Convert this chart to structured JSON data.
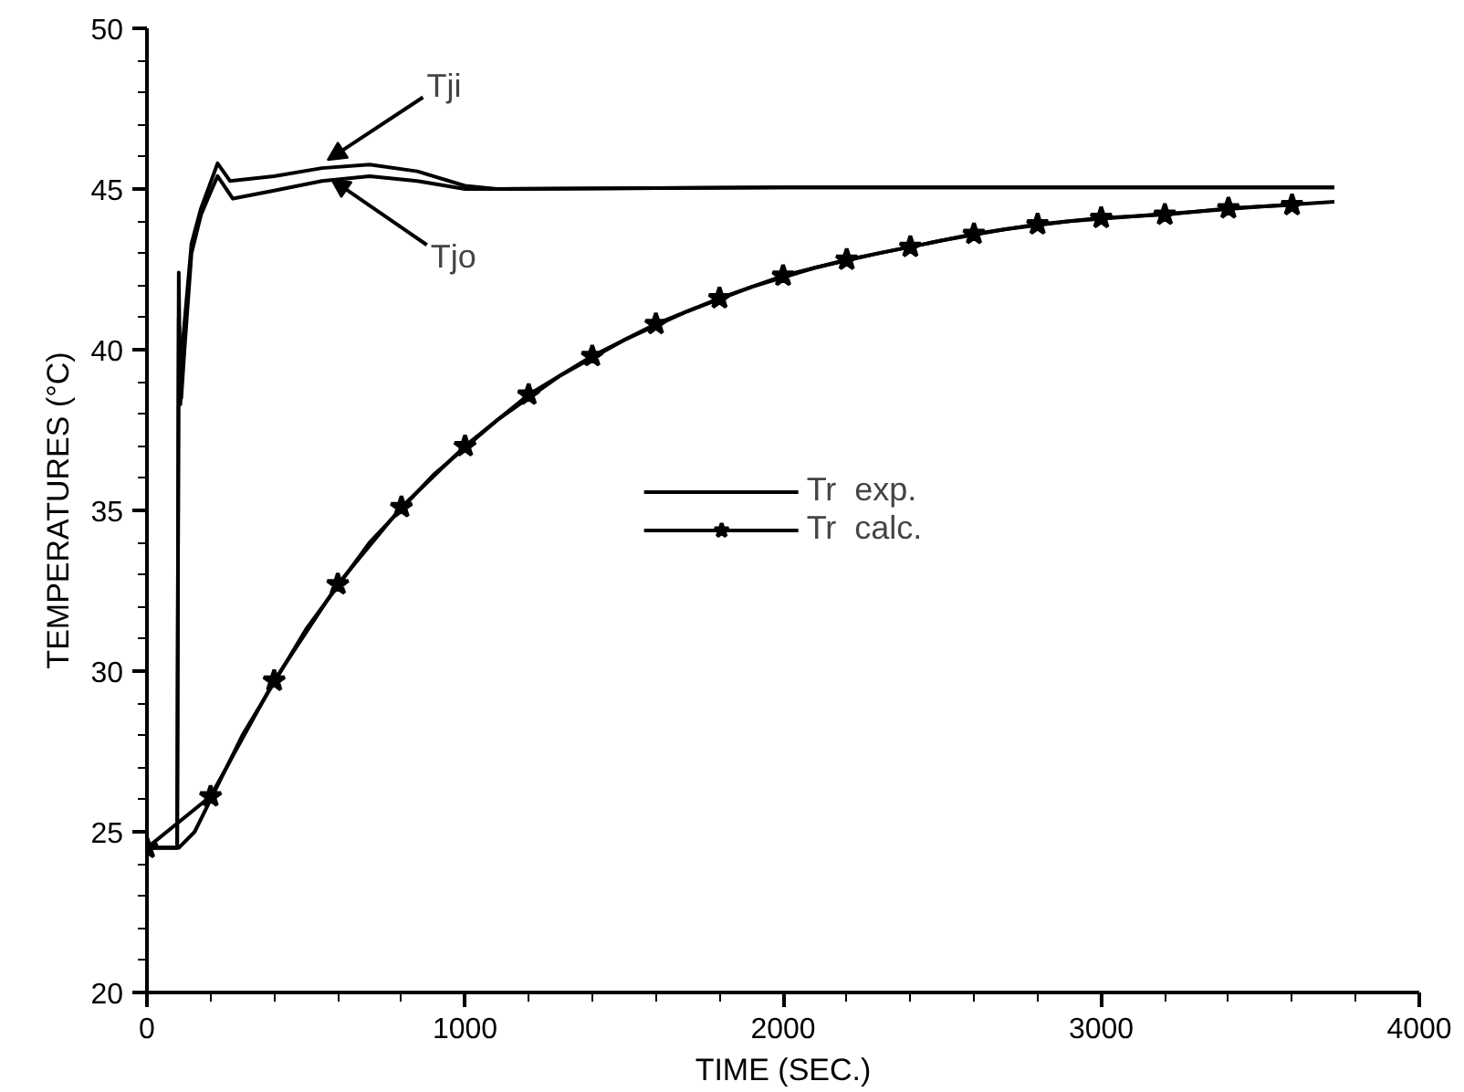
{
  "chart_data": {
    "type": "line",
    "xlabel": "TIME (SEC.)",
    "ylabel": "TEMPERATURES (°C)",
    "xlim": [
      0,
      4000
    ],
    "xticks": [
      0,
      1000,
      2000,
      3000,
      4000
    ],
    "ylim": [
      20,
      50
    ],
    "yticks": [
      20,
      25,
      30,
      35,
      40,
      45,
      50
    ],
    "grid": false,
    "legend": "center",
    "series": [
      {
        "color": "#000000",
        "marker": "none",
        "x": [
          0,
          95,
          100,
          105,
          115,
          140,
          170,
          200,
          222,
          261,
          400,
          550,
          700,
          850,
          1000,
          1100,
          2000,
          3000,
          3733
        ],
        "values": [
          24.5,
          24.5,
          42.4,
          38.3,
          40.5,
          43.3,
          44.4,
          45.2,
          45.8,
          45.25,
          45.4,
          45.65,
          45.76,
          45.55,
          45.1,
          45.0,
          45.05,
          45.05,
          45.05
        ]
      },
      {
        "color": "#000000",
        "marker": "none",
        "x": [
          0,
          95,
          100,
          108,
          118,
          140,
          170,
          200,
          222,
          270,
          400,
          550,
          700,
          850,
          1000,
          1100,
          2000,
          3000,
          3733
        ],
        "values": [
          24.5,
          24.5,
          41.0,
          38.5,
          40.0,
          43.0,
          44.2,
          44.9,
          45.4,
          44.7,
          44.95,
          45.25,
          45.4,
          45.25,
          45.0,
          45.0,
          45.05,
          45.05,
          45.05
        ]
      },
      {
        "name": "Tr  exp.",
        "color": "#000000",
        "marker": "none",
        "x": [
          0,
          100,
          150,
          300,
          500,
          700,
          900,
          1100,
          1300,
          1500,
          1700,
          1900,
          2100,
          2300,
          2500,
          2700,
          2900,
          3100,
          3300,
          3500,
          3733
        ],
        "values": [
          24.5,
          24.5,
          25.0,
          28.0,
          31.3,
          34.0,
          36.1,
          37.8,
          39.2,
          40.3,
          41.2,
          41.95,
          42.55,
          43.0,
          43.4,
          43.75,
          44.0,
          44.15,
          44.3,
          44.45,
          44.6
        ]
      },
      {
        "name": "Tr  calc.",
        "color": "#000000",
        "marker": "star",
        "x": [
          0,
          200,
          400,
          600,
          800,
          1000,
          1200,
          1400,
          1600,
          1800,
          2000,
          2200,
          2400,
          2600,
          2800,
          3000,
          3200,
          3400,
          3600
        ],
        "values": [
          24.5,
          26.1,
          29.7,
          32.7,
          35.1,
          37.0,
          38.6,
          39.8,
          40.8,
          41.6,
          42.3,
          42.8,
          43.2,
          43.6,
          43.9,
          44.1,
          44.2,
          44.4,
          44.5
        ]
      }
    ],
    "annotations": [
      {
        "text": "Tji",
        "x": 568,
        "y": 45.9
      },
      {
        "text": "Tjo",
        "x": 580,
        "y": 45.3
      }
    ]
  }
}
